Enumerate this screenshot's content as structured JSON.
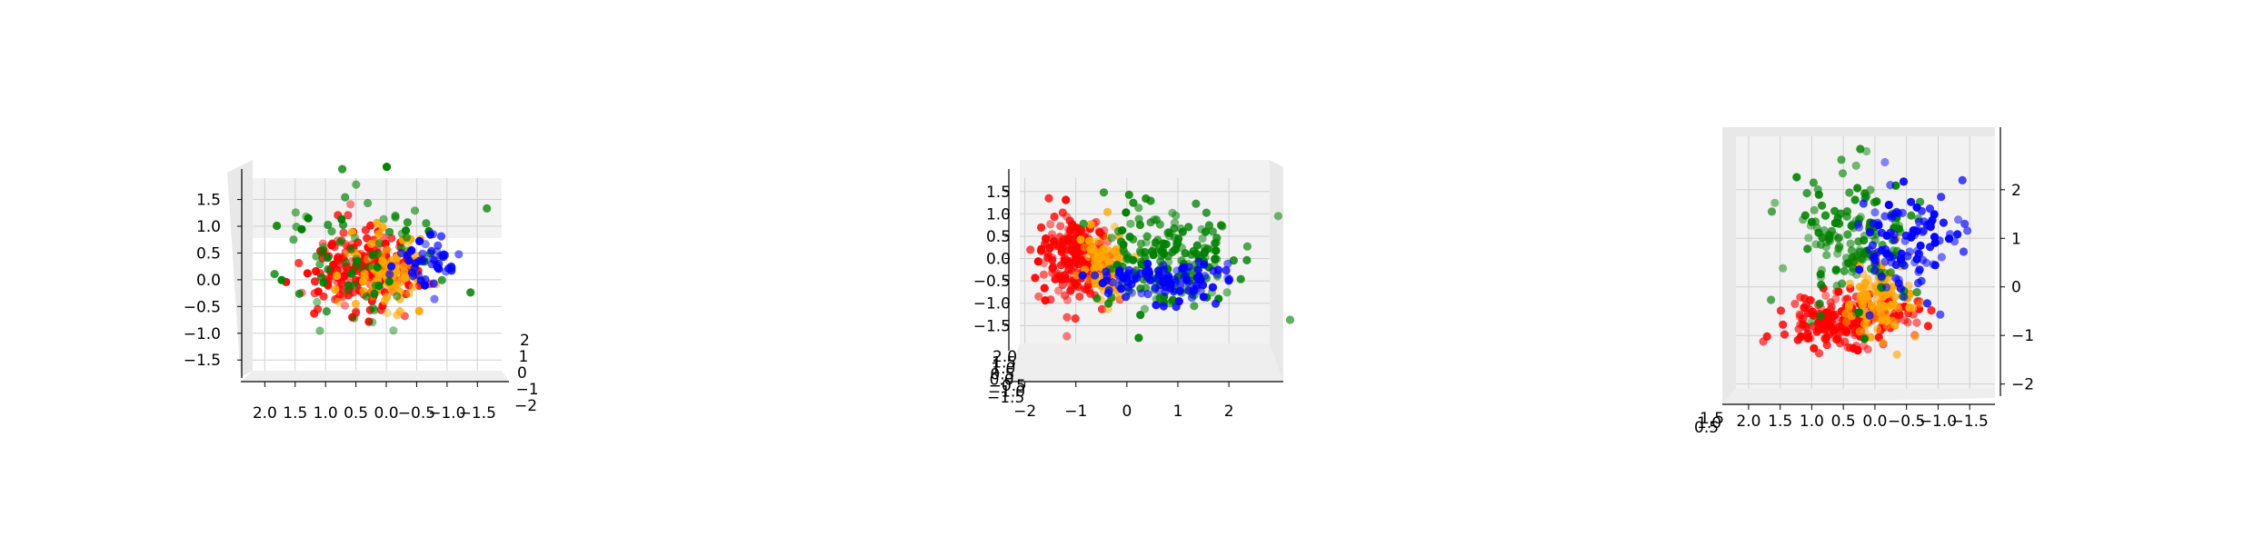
{
  "figure": {
    "background": "#ffffff",
    "pane_color": "#f2f2f2",
    "grid_color": "#d0d0d0",
    "axis_color": "#000000"
  },
  "cluster_colors": {
    "red": "#ff0000",
    "orange": "#ffa500",
    "green": "#008000",
    "blue": "#0000ff"
  },
  "chart_data": [
    {
      "type": "scatter",
      "title": "",
      "view": "front, slightly elevated",
      "horizontal_axis": {
        "tick_labels": [
          "2.0",
          "1.5",
          "1.0",
          "0.5",
          "0.0",
          "−0.5",
          "−1.0",
          "−1.5"
        ],
        "direction": "decreasing",
        "range": [
          2.2,
          -1.9
        ]
      },
      "vertical_axis": {
        "tick_labels": [
          "1.5",
          "1.0",
          "0.5",
          "0.0",
          "−0.5",
          "−1.0",
          "−1.5"
        ],
        "range": [
          -1.7,
          1.9
        ]
      },
      "depth_axis": {
        "tick_labels": [
          "2",
          "1",
          "0",
          "−1",
          "−2"
        ]
      },
      "grid": true,
      "series": [
        {
          "color": "red",
          "center": [
            0.4,
            0.25
          ],
          "spread": [
            0.45,
            0.4
          ],
          "count": 200
        },
        {
          "color": "orange",
          "center": [
            0.05,
            0.15
          ],
          "spread": [
            0.3,
            0.35
          ],
          "count": 90
        },
        {
          "color": "green",
          "center": [
            0.5,
            0.45
          ],
          "spread": [
            0.75,
            0.6
          ],
          "count": 80
        },
        {
          "color": "blue",
          "center": [
            -0.7,
            0.35
          ],
          "spread": [
            0.3,
            0.25
          ],
          "count": 45
        }
      ]
    },
    {
      "type": "scatter",
      "title": "",
      "view": "front, y horizontal",
      "horizontal_axis": {
        "tick_labels": [
          "−2",
          "−1",
          "0",
          "1",
          "2"
        ],
        "direction": "increasing",
        "range": [
          -2.1,
          2.8
        ]
      },
      "vertical_axis": {
        "tick_labels": [
          "1.5",
          "1.0",
          "0.5",
          "0.0",
          "−0.5",
          "−1.0",
          "−1.5"
        ],
        "range": [
          -1.9,
          1.8
        ]
      },
      "depth_axis": {
        "tick_labels": [
          "2.0",
          "1.5",
          "1.0",
          "0.5",
          "0.0",
          "−0.5",
          "−1.0",
          "−1.5"
        ]
      },
      "grid": true,
      "series": [
        {
          "color": "red",
          "center": [
            -1.0,
            0.0
          ],
          "spread": [
            0.35,
            0.45
          ],
          "count": 200
        },
        {
          "color": "orange",
          "center": [
            -0.45,
            -0.2
          ],
          "spread": [
            0.25,
            0.4
          ],
          "count": 80
        },
        {
          "color": "green",
          "center": [
            0.8,
            0.1
          ],
          "spread": [
            0.7,
            0.6
          ],
          "count": 180
        },
        {
          "color": "blue",
          "center": [
            0.8,
            -0.5
          ],
          "spread": [
            0.6,
            0.25
          ],
          "count": 110
        }
      ]
    },
    {
      "type": "scatter",
      "title": "",
      "view": "front, z axis on right",
      "horizontal_axis": {
        "tick_labels": [
          "2.0",
          "1.5",
          "1.0",
          "0.5",
          "0.0",
          "−0.5",
          "−1.0",
          "−1.5"
        ],
        "direction": "decreasing",
        "range": [
          2.2,
          -1.9
        ]
      },
      "vertical_axis": {
        "tick_labels": [
          "2",
          "1",
          "0",
          "−1",
          "−2"
        ],
        "range": [
          -2.1,
          3.1
        ]
      },
      "depth_axis": {
        "tick_labels": [
          "1.5",
          "1.0",
          "0.5"
        ]
      },
      "grid": true,
      "series": [
        {
          "color": "red",
          "center": [
            0.45,
            -0.7
          ],
          "spread": [
            0.55,
            0.25
          ],
          "count": 220
        },
        {
          "color": "orange",
          "center": [
            0.0,
            -0.2
          ],
          "spread": [
            0.3,
            0.45
          ],
          "count": 110
        },
        {
          "color": "green",
          "center": [
            0.35,
            1.0
          ],
          "spread": [
            0.45,
            0.7
          ],
          "count": 150
        },
        {
          "color": "blue",
          "center": [
            -0.5,
            1.0
          ],
          "spread": [
            0.45,
            0.6
          ],
          "count": 110
        }
      ]
    }
  ]
}
